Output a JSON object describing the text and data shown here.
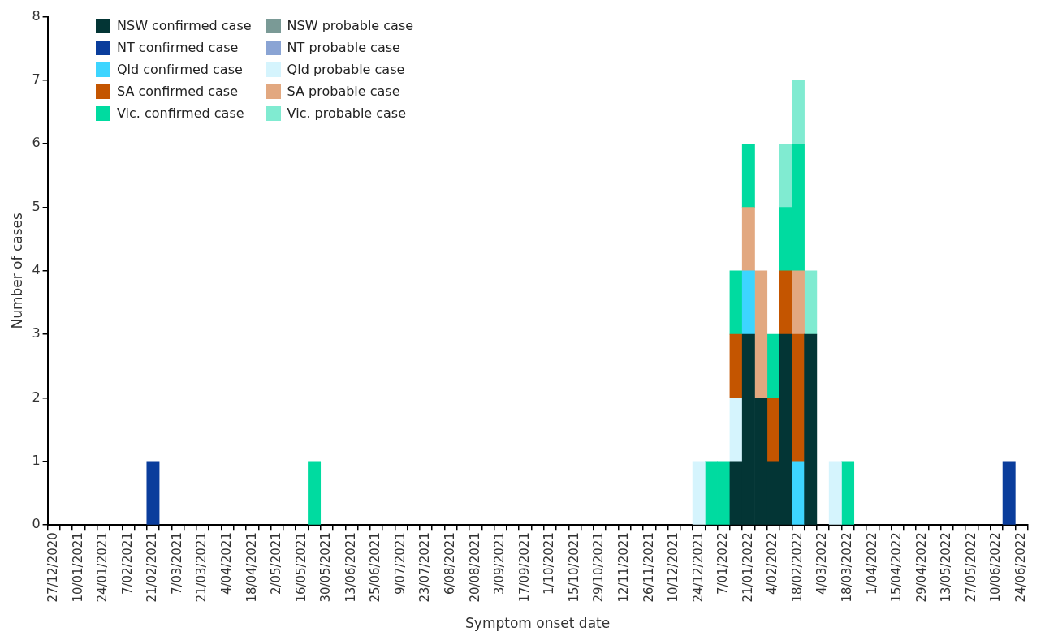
{
  "chart_data": {
    "type": "bar",
    "stacked": true,
    "xlabel": "Symptom onset date",
    "ylabel": "Number of cases",
    "ylim": [
      0,
      8
    ],
    "yticks": [
      0,
      1,
      2,
      3,
      4,
      5,
      6,
      7,
      8
    ],
    "legend": "top left",
    "categories": [
      "27/12/2020",
      null,
      "10/01/2021",
      null,
      "24/01/2021",
      null,
      "7/02/2021",
      null,
      "21/02/2021",
      null,
      "7/03/2021",
      null,
      "21/03/2021",
      null,
      "4/04/2021",
      null,
      "18/04/2021",
      null,
      "2/05/2021",
      null,
      "16/05/2021",
      null,
      "30/05/2021",
      null,
      "13/06/2021",
      null,
      "25/06/2021",
      null,
      "9/07/2021",
      null,
      "23/07/2021",
      null,
      "6/08/2021",
      null,
      "20/08/2021",
      null,
      "3/09/2021",
      null,
      "17/09/2021",
      null,
      "1/10/2021",
      null,
      "15/10/2021",
      null,
      "29/10/2021",
      null,
      "12/11/2021",
      null,
      "26/11/2021",
      null,
      "10/12/2021",
      null,
      "24/12/2021",
      null,
      "7/01/2022",
      null,
      "21/01/2022",
      null,
      "4/02/2022",
      null,
      "18/02/2022",
      null,
      "4/03/2022",
      null,
      "18/03/2022",
      null,
      "1/04/2022",
      null,
      "15/04/2022",
      null,
      "29/04/2022",
      null,
      "13/05/2022",
      null,
      "27/05/2022",
      null,
      "10/06/2022",
      null,
      "24/06/2022"
    ],
    "series": [
      {
        "name": "NSW confirmed case",
        "color": "#033535",
        "values": [
          null,
          null,
          null,
          null,
          null,
          null,
          null,
          null,
          null,
          null,
          null,
          null,
          null,
          null,
          null,
          null,
          null,
          null,
          null,
          null,
          null,
          null,
          null,
          null,
          null,
          null,
          null,
          null,
          null,
          null,
          null,
          null,
          null,
          null,
          null,
          null,
          null,
          null,
          null,
          null,
          null,
          null,
          null,
          null,
          null,
          null,
          null,
          null,
          null,
          null,
          null,
          null,
          null,
          null,
          null,
          1,
          3,
          2,
          1,
          3,
          null,
          3,
          null,
          null,
          null,
          null,
          null,
          null,
          null,
          null,
          null,
          null,
          null,
          null,
          null,
          null,
          null,
          null,
          null
        ]
      },
      {
        "name": "NSW probable case",
        "color": "#7a9a96",
        "values": [
          null,
          null,
          null,
          null,
          null,
          null,
          null,
          null,
          null,
          null,
          null,
          null,
          null,
          null,
          null,
          null,
          null,
          null,
          null,
          null,
          null,
          null,
          null,
          null,
          null,
          null,
          null,
          null,
          null,
          null,
          null,
          null,
          null,
          null,
          null,
          null,
          null,
          null,
          null,
          null,
          null,
          null,
          null,
          null,
          null,
          null,
          null,
          null,
          null,
          null,
          null,
          null,
          null,
          null,
          null,
          null,
          null,
          null,
          null,
          null,
          null,
          null,
          null,
          null,
          null,
          null,
          null,
          null,
          null,
          null,
          null,
          null,
          null,
          null,
          null,
          null,
          null,
          null,
          null
        ]
      },
      {
        "name": "NT confirmed case",
        "color": "#0a3d9c",
        "values": [
          null,
          null,
          null,
          null,
          null,
          null,
          null,
          null,
          1,
          null,
          null,
          null,
          null,
          null,
          null,
          null,
          null,
          null,
          null,
          null,
          null,
          null,
          null,
          null,
          null,
          null,
          null,
          null,
          null,
          null,
          null,
          null,
          null,
          null,
          null,
          null,
          null,
          null,
          null,
          null,
          null,
          null,
          null,
          null,
          null,
          null,
          null,
          null,
          null,
          null,
          null,
          null,
          null,
          null,
          null,
          null,
          null,
          null,
          null,
          null,
          null,
          null,
          null,
          null,
          null,
          null,
          null,
          null,
          null,
          null,
          null,
          null,
          null,
          null,
          null,
          null,
          null,
          1,
          null
        ]
      },
      {
        "name": "NT probable case",
        "color": "#8aa4d4",
        "values": [
          null,
          null,
          null,
          null,
          null,
          null,
          null,
          null,
          null,
          null,
          null,
          null,
          null,
          null,
          null,
          null,
          null,
          null,
          null,
          null,
          null,
          null,
          null,
          null,
          null,
          null,
          null,
          null,
          null,
          null,
          null,
          null,
          null,
          null,
          null,
          null,
          null,
          null,
          null,
          null,
          null,
          null,
          null,
          null,
          null,
          null,
          null,
          null,
          null,
          null,
          null,
          null,
          null,
          null,
          null,
          null,
          null,
          null,
          null,
          null,
          null,
          null,
          null,
          null,
          null,
          null,
          null,
          null,
          null,
          null,
          null,
          null,
          null,
          null,
          null,
          null,
          null,
          null,
          null
        ]
      },
      {
        "name": "Qld confirmed case",
        "color": "#3dd5ff",
        "values": [
          null,
          null,
          null,
          null,
          null,
          null,
          null,
          null,
          null,
          null,
          null,
          null,
          null,
          null,
          null,
          null,
          null,
          null,
          null,
          null,
          null,
          null,
          null,
          null,
          null,
          null,
          null,
          null,
          null,
          null,
          null,
          null,
          null,
          null,
          null,
          null,
          null,
          null,
          null,
          null,
          null,
          null,
          null,
          null,
          null,
          null,
          null,
          null,
          null,
          null,
          null,
          null,
          null,
          null,
          null,
          null,
          1,
          null,
          null,
          null,
          1,
          null,
          null,
          null,
          null,
          null,
          null,
          null,
          null,
          null,
          null,
          null,
          null,
          null,
          null,
          null,
          null,
          null,
          null
        ]
      },
      {
        "name": "Qld probable case",
        "color": "#d5f4fd",
        "values": [
          null,
          null,
          null,
          null,
          null,
          null,
          null,
          null,
          null,
          null,
          null,
          null,
          null,
          null,
          null,
          null,
          null,
          null,
          null,
          null,
          null,
          null,
          null,
          null,
          null,
          null,
          null,
          null,
          null,
          null,
          null,
          null,
          null,
          null,
          null,
          null,
          null,
          null,
          null,
          null,
          null,
          null,
          null,
          null,
          null,
          null,
          null,
          null,
          null,
          null,
          null,
          null,
          1,
          null,
          null,
          1,
          null,
          null,
          null,
          null,
          null,
          null,
          null,
          1,
          null,
          null,
          null,
          null,
          null,
          null,
          null,
          null,
          null,
          null,
          null,
          null,
          null,
          null,
          null
        ]
      },
      {
        "name": "SA confirmed case",
        "color": "#c45500",
        "values": [
          null,
          null,
          null,
          null,
          null,
          null,
          null,
          null,
          null,
          null,
          null,
          null,
          null,
          null,
          null,
          null,
          null,
          null,
          null,
          null,
          null,
          null,
          null,
          null,
          null,
          null,
          null,
          null,
          null,
          null,
          null,
          null,
          null,
          null,
          null,
          null,
          null,
          null,
          null,
          null,
          null,
          null,
          null,
          null,
          null,
          null,
          null,
          null,
          null,
          null,
          null,
          null,
          null,
          null,
          null,
          1,
          null,
          null,
          1,
          1,
          2,
          null,
          null,
          null,
          null,
          null,
          null,
          null,
          null,
          null,
          null,
          null,
          null,
          null,
          null,
          null,
          null,
          null,
          null
        ]
      },
      {
        "name": "SA probable case",
        "color": "#e2a880",
        "values": [
          null,
          null,
          null,
          null,
          null,
          null,
          null,
          null,
          null,
          null,
          null,
          null,
          null,
          null,
          null,
          null,
          null,
          null,
          null,
          null,
          null,
          null,
          null,
          null,
          null,
          null,
          null,
          null,
          null,
          null,
          null,
          null,
          null,
          null,
          null,
          null,
          null,
          null,
          null,
          null,
          null,
          null,
          null,
          null,
          null,
          null,
          null,
          null,
          null,
          null,
          null,
          null,
          null,
          null,
          null,
          null,
          1,
          2,
          null,
          null,
          1,
          null,
          null,
          null,
          null,
          null,
          null,
          null,
          null,
          null,
          null,
          null,
          null,
          null,
          null,
          null,
          null,
          null,
          null
        ]
      },
      {
        "name": "Vic. confirmed case",
        "color": "#00dba0",
        "values": [
          null,
          null,
          null,
          null,
          null,
          null,
          null,
          null,
          null,
          null,
          null,
          null,
          null,
          null,
          null,
          null,
          null,
          null,
          null,
          null,
          null,
          1,
          null,
          null,
          null,
          null,
          null,
          null,
          null,
          null,
          null,
          null,
          null,
          null,
          null,
          null,
          null,
          null,
          null,
          null,
          null,
          null,
          null,
          null,
          null,
          null,
          null,
          null,
          null,
          null,
          null,
          null,
          null,
          1,
          1,
          1,
          1,
          null,
          1,
          1,
          2,
          null,
          null,
          null,
          1,
          null,
          null,
          null,
          null,
          null,
          null,
          null,
          null,
          null,
          null,
          null,
          null,
          null,
          null
        ]
      },
      {
        "name": "Vic. probable case",
        "color": "#80ebd1",
        "values": [
          null,
          null,
          null,
          null,
          null,
          null,
          null,
          null,
          null,
          null,
          null,
          null,
          null,
          null,
          null,
          null,
          null,
          null,
          null,
          null,
          null,
          null,
          null,
          null,
          null,
          null,
          null,
          null,
          null,
          null,
          null,
          null,
          null,
          null,
          null,
          null,
          null,
          null,
          null,
          null,
          null,
          null,
          null,
          null,
          null,
          null,
          null,
          null,
          null,
          null,
          null,
          null,
          null,
          null,
          null,
          null,
          null,
          null,
          null,
          1,
          1,
          1,
          null,
          null,
          null,
          null,
          null,
          null,
          null,
          null,
          null,
          null,
          null,
          null,
          null,
          null,
          null,
          null,
          null
        ]
      }
    ]
  }
}
